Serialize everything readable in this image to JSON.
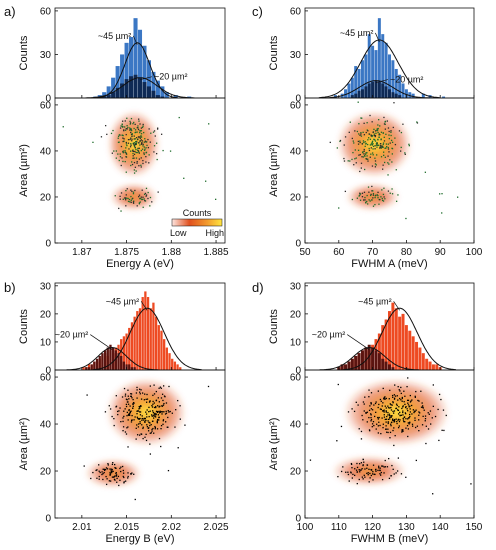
{
  "chart_data": [
    {
      "panel_label": "a)",
      "type": "bar",
      "x_axis": {
        "label": "Energy A (eV)",
        "lim": [
          1.867,
          1.886
        ],
        "ticks": [
          1.87,
          1.875,
          1.88,
          1.885
        ],
        "tick_labels": [
          "1.87",
          "1.875",
          "1.88",
          "1.885"
        ]
      },
      "histogram": {
        "ylabel": "Counts",
        "ylim": [
          0,
          62
        ],
        "ticks": [
          0,
          30,
          60
        ],
        "tick_labels": [
          "0",
          "30",
          "60"
        ],
        "bin_width": 0.0005,
        "series": [
          {
            "color": "#3b77c4",
            "x": [
              1.8715,
              1.872,
              1.8725,
              1.873,
              1.8735,
              1.874,
              1.8745,
              1.875,
              1.8755,
              1.876,
              1.8765,
              1.877,
              1.8775,
              1.878,
              1.8785,
              1.879,
              1.8795,
              1.8805,
              1.882
            ],
            "values": [
              1,
              2,
              4,
              8,
              14,
              22,
              30,
              38,
              42,
              55,
              47,
              36,
              26,
              18,
              12,
              8,
              4,
              2,
              1
            ]
          },
          {
            "color": "#0f2a55",
            "x": [
              1.8725,
              1.873,
              1.8735,
              1.874,
              1.8745,
              1.875,
              1.8755,
              1.876,
              1.8765,
              1.877,
              1.8775,
              1.878,
              1.8785,
              1.879
            ],
            "values": [
              1,
              2,
              4,
              7,
              10,
              13,
              15,
              16,
              14,
              11,
              8,
              5,
              2,
              1
            ]
          }
        ],
        "fit_curves": [
          {
            "label": "~45 µm²",
            "center": 1.8762,
            "sigma": 0.0014,
            "amplitude": 38
          },
          {
            "label": "~20 µm²",
            "center": 1.8765,
            "sigma": 0.0019,
            "amplitude": 14
          }
        ]
      },
      "map": {
        "ylabel": "Area (µm²)",
        "ylim": [
          0,
          63
        ],
        "ticks": [
          0,
          20,
          40,
          60
        ],
        "tick_labels": [
          "0",
          "20",
          "40",
          "60"
        ],
        "clusters": [
          {
            "center": [
              1.8758,
              43
            ],
            "spread": [
              0.0011,
              5.5
            ],
            "n": 230
          },
          {
            "center": [
              1.8758,
              20
            ],
            "spread": [
              0.001,
              2.2
            ],
            "n": 60
          }
        ],
        "legend": {
          "title": "Counts",
          "low": "Low",
          "high": "High"
        }
      }
    },
    {
      "panel_label": "c)",
      "type": "bar",
      "x_axis": {
        "label": "FWHM A (meV)",
        "lim": [
          50,
          100
        ],
        "ticks": [
          50,
          60,
          70,
          80,
          90,
          100
        ],
        "tick_labels": [
          "50",
          "60",
          "70",
          "80",
          "90",
          "100"
        ]
      },
      "histogram": {
        "ylabel": "Counts",
        "ylim": [
          0,
          62
        ],
        "ticks": [
          0,
          30,
          60
        ],
        "tick_labels": [
          "0",
          "30",
          "60"
        ],
        "bin_width": 1,
        "series": [
          {
            "color": "#3b77c4",
            "x": [
              59,
              61,
              62,
              63,
              64,
              65,
              66,
              67,
              68,
              69,
              70,
              71,
              72,
              73,
              74,
              75,
              76,
              77,
              78,
              79,
              80,
              81,
              82,
              85,
              87,
              91
            ],
            "values": [
              2,
              3,
              6,
              10,
              14,
              22,
              20,
              26,
              30,
              44,
              36,
              33,
              55,
              44,
              38,
              30,
              26,
              20,
              16,
              10,
              6,
              4,
              3,
              3,
              2,
              1
            ]
          },
          {
            "color": "#0f2a55",
            "x": [
              64,
              65,
              66,
              67,
              68,
              69,
              70,
              71,
              72,
              73,
              74,
              75,
              76,
              77,
              78
            ],
            "values": [
              2,
              3,
              5,
              6,
              8,
              10,
              11,
              12,
              11,
              10,
              8,
              6,
              4,
              3,
              2
            ]
          }
        ],
        "fit_curves": [
          {
            "label": "~45 µm²",
            "center": 72,
            "sigma": 5.6,
            "amplitude": 40
          },
          {
            "label": "~20 µm²",
            "center": 71,
            "sigma": 5.0,
            "amplitude": 12
          }
        ]
      },
      "map": {
        "ylabel": "Area (µm²)",
        "ylim": [
          0,
          63
        ],
        "ticks": [
          0,
          20,
          40,
          60
        ],
        "tick_labels": [
          "0",
          "20",
          "40",
          "60"
        ],
        "clusters": [
          {
            "center": [
              70.5,
              43
            ],
            "spread": [
              4.2,
              5.5
            ],
            "n": 230
          },
          {
            "center": [
              70,
              20
            ],
            "spread": [
              3.0,
              2.2
            ],
            "n": 60
          }
        ]
      }
    },
    {
      "panel_label": "b)",
      "type": "bar",
      "x_axis": {
        "label": "Energy B (eV)",
        "lim": [
          2.007,
          2.026
        ],
        "ticks": [
          2.01,
          2.015,
          2.02,
          2.025
        ],
        "tick_labels": [
          "2.01",
          "2.015",
          "2.02",
          "2.025"
        ]
      },
      "histogram": {
        "ylabel": "Counts",
        "ylim": [
          0,
          31
        ],
        "ticks": [
          0,
          10,
          20,
          30
        ],
        "tick_labels": [
          "0",
          "10",
          "20",
          "30"
        ],
        "bin_width": 0.0003,
        "series": [
          {
            "color": "#ee4a22",
            "x": [
              2.0102,
              2.0105,
              2.0108,
              2.0111,
              2.0114,
              2.0117,
              2.012,
              2.0123,
              2.0126,
              2.0129,
              2.0132,
              2.0135,
              2.0138,
              2.0141,
              2.0144,
              2.0147,
              2.015,
              2.0153,
              2.0156,
              2.0159,
              2.0162,
              2.0165,
              2.0168,
              2.0171,
              2.0174,
              2.0177,
              2.018,
              2.0183,
              2.0186,
              2.0189,
              2.0192,
              2.0195,
              2.0198,
              2.0201,
              2.0204,
              2.0207,
              2.021
            ],
            "values": [
              1,
              1,
              2,
              2,
              3,
              3,
              4,
              5,
              6,
              5,
              7,
              6,
              8,
              9,
              11,
              12,
              13,
              15,
              17,
              19,
              21,
              22,
              26,
              28,
              26,
              22,
              24,
              19,
              16,
              14,
              11,
              8,
              6,
              4,
              3,
              2,
              1
            ]
          },
          {
            "color": "#5a1410",
            "x": [
              2.0105,
              2.0108,
              2.0111,
              2.0114,
              2.0117,
              2.012,
              2.0123,
              2.0126,
              2.0129,
              2.0132,
              2.0135,
              2.0138,
              2.0141,
              2.0144,
              2.0147,
              2.015,
              2.0153,
              2.0156,
              2.0159
            ],
            "values": [
              1,
              1,
              2,
              3,
              4,
              5,
              6,
              7,
              8,
              9,
              8,
              7,
              6,
              5,
              3,
              2,
              2,
              1,
              1
            ]
          }
        ],
        "fit_curves": [
          {
            "label": "~45 µm²",
            "center": 2.0173,
            "sigma": 0.0019,
            "amplitude": 22
          },
          {
            "label": "~20 µm²",
            "center": 2.0134,
            "sigma": 0.0016,
            "amplitude": 8
          }
        ]
      },
      "map": {
        "ylabel": "Area (µm²)",
        "ylim": [
          0,
          63
        ],
        "ticks": [
          0,
          20,
          40,
          60
        ],
        "tick_labels": [
          "0",
          "20",
          "40",
          "60"
        ],
        "clusters": [
          {
            "center": [
              2.0172,
              45
            ],
            "spread": [
              0.0017,
              5.5
            ],
            "n": 260
          },
          {
            "center": [
              2.0135,
              19
            ],
            "spread": [
              0.0012,
              2.3
            ],
            "n": 80
          }
        ]
      }
    },
    {
      "panel_label": "d)",
      "type": "bar",
      "x_axis": {
        "label": "FWHM B (meV)",
        "lim": [
          100,
          150
        ],
        "ticks": [
          100,
          110,
          120,
          130,
          140,
          150
        ],
        "tick_labels": [
          "100",
          "110",
          "120",
          "130",
          "140",
          "150"
        ]
      },
      "histogram": {
        "ylabel": "Counts",
        "ylim": [
          0,
          31
        ],
        "ticks": [
          0,
          10,
          20,
          30
        ],
        "tick_labels": [
          "0",
          "10",
          "20",
          "30"
        ],
        "bin_width": 1,
        "series": [
          {
            "color": "#ee4a22",
            "x": [
              110,
              111,
              112,
              113,
              114,
              115,
              116,
              117,
              118,
              119,
              120,
              121,
              122,
              123,
              124,
              125,
              126,
              127,
              128,
              129,
              130,
              131,
              132,
              133,
              134,
              135,
              136,
              137,
              138,
              139,
              140
            ],
            "values": [
              1,
              2,
              2,
              3,
              4,
              5,
              6,
              7,
              8,
              7,
              9,
              11,
              13,
              16,
              18,
              21,
              24,
              22,
              19,
              20,
              16,
              14,
              12,
              10,
              8,
              6,
              4,
              3,
              2,
              2,
              1
            ]
          },
          {
            "color": "#5a1410",
            "x": [
              110,
              111,
              112,
              113,
              114,
              115,
              116,
              117,
              118,
              119,
              120,
              121,
              122,
              123,
              124,
              125,
              126
            ],
            "values": [
              1,
              2,
              2,
              3,
              4,
              5,
              6,
              7,
              8,
              9,
              8,
              7,
              6,
              4,
              3,
              2,
              1
            ]
          }
        ],
        "fit_curves": [
          {
            "label": "~45 µm²",
            "center": 128,
            "sigma": 5.2,
            "amplitude": 22
          },
          {
            "label": "~20 µm²",
            "center": 119,
            "sigma": 4.6,
            "amplitude": 8
          }
        ]
      },
      "map": {
        "ylabel": "Area (µm²)",
        "ylim": [
          0,
          63
        ],
        "ticks": [
          0,
          20,
          40,
          60
        ],
        "tick_labels": [
          "0",
          "20",
          "40",
          "60"
        ],
        "clusters": [
          {
            "center": [
              127,
              45
            ],
            "spread": [
              6.0,
              5.5
            ],
            "n": 290
          },
          {
            "center": [
              119,
              20
            ],
            "spread": [
              4.2,
              2.4
            ],
            "n": 90
          }
        ]
      }
    }
  ],
  "colors": {
    "hist_blue_total": "#3b77c4",
    "hist_blue_small": "#0f2a55",
    "hist_red_total": "#ee4a22",
    "hist_red_small": "#5a1410",
    "density_edge": "#e0501e",
    "density_mid": "#f29a2e",
    "density_core": "#ffe640",
    "fit_line": "#111111",
    "scatter_a": "#1d6b2a",
    "scatter_b": "#000000"
  }
}
